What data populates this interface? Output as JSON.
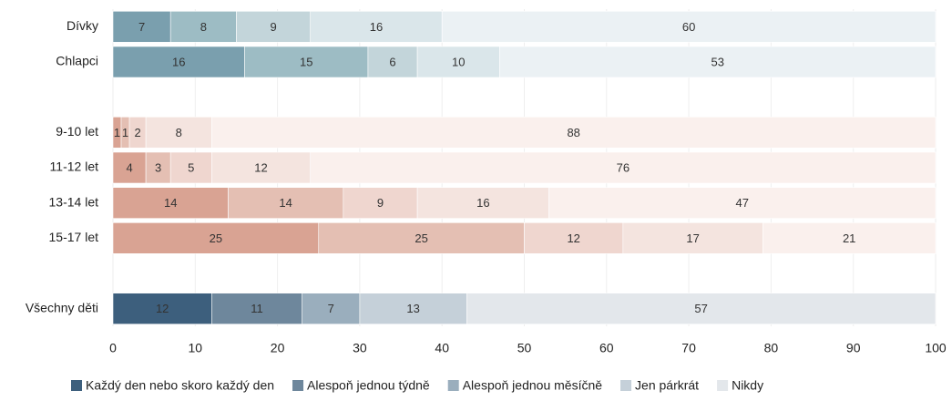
{
  "chart_data": {
    "type": "stacked-barh",
    "categories": [
      "Dívky",
      "Chlapci",
      null,
      "9-10 let",
      "11-12 let",
      "13-14 let",
      "15-17 let",
      null,
      "Všechny děti"
    ],
    "series": [
      {
        "name": "Každý den nebo skoro každý den",
        "color": "#3d5f7d",
        "values": [
          7,
          16,
          null,
          1,
          4,
          14,
          25,
          null,
          12
        ],
        "colors": [
          "#7a9fae",
          "#7a9fae",
          null,
          "#d9a393",
          "#d9a393",
          "#d9a393",
          "#d9a393",
          null,
          "#3d5f7d"
        ]
      },
      {
        "name": "Alespoň jednou týdně",
        "color": "#6e879c",
        "values": [
          8,
          15,
          null,
          1,
          3,
          14,
          25,
          null,
          11
        ],
        "colors": [
          "#9dbcc4",
          "#9dbcc4",
          null,
          "#e4bfb3",
          "#e4bfb3",
          "#e4bfb3",
          "#e4bfb3",
          null,
          "#6e879c"
        ]
      },
      {
        "name": "Alespoň jednou měsíčně",
        "color": "#9aaebd",
        "values": [
          9,
          6,
          null,
          2,
          5,
          9,
          12,
          null,
          7
        ],
        "colors": [
          "#c3d5da",
          "#c3d5da",
          null,
          "#efd6cf",
          "#efd6cf",
          "#efd6cf",
          "#efd6cf",
          null,
          "#9aaebd"
        ]
      },
      {
        "name": "Jen párkrát",
        "color": "#c5d0d9",
        "values": [
          16,
          10,
          null,
          8,
          12,
          16,
          17,
          null,
          13
        ],
        "colors": [
          "#dae6ea",
          "#dae6ea",
          null,
          "#f4e4df",
          "#f4e4df",
          "#f4e4df",
          "#f4e4df",
          null,
          "#c5d0d9"
        ]
      },
      {
        "name": "Nikdy",
        "color": "#e3e7eb",
        "values": [
          60,
          53,
          null,
          88,
          76,
          47,
          21,
          null,
          57
        ],
        "colors": [
          "#ebf1f4",
          "#ebf1f4",
          null,
          "#faf0ed",
          "#faf0ed",
          "#faf0ed",
          "#faf0ed",
          null,
          "#e3e7eb"
        ]
      }
    ],
    "xlim": [
      0,
      100
    ],
    "xticks": [
      0,
      10,
      20,
      30,
      40,
      50,
      60,
      70,
      80,
      90,
      100
    ],
    "grid": true,
    "legend": "bottom"
  }
}
